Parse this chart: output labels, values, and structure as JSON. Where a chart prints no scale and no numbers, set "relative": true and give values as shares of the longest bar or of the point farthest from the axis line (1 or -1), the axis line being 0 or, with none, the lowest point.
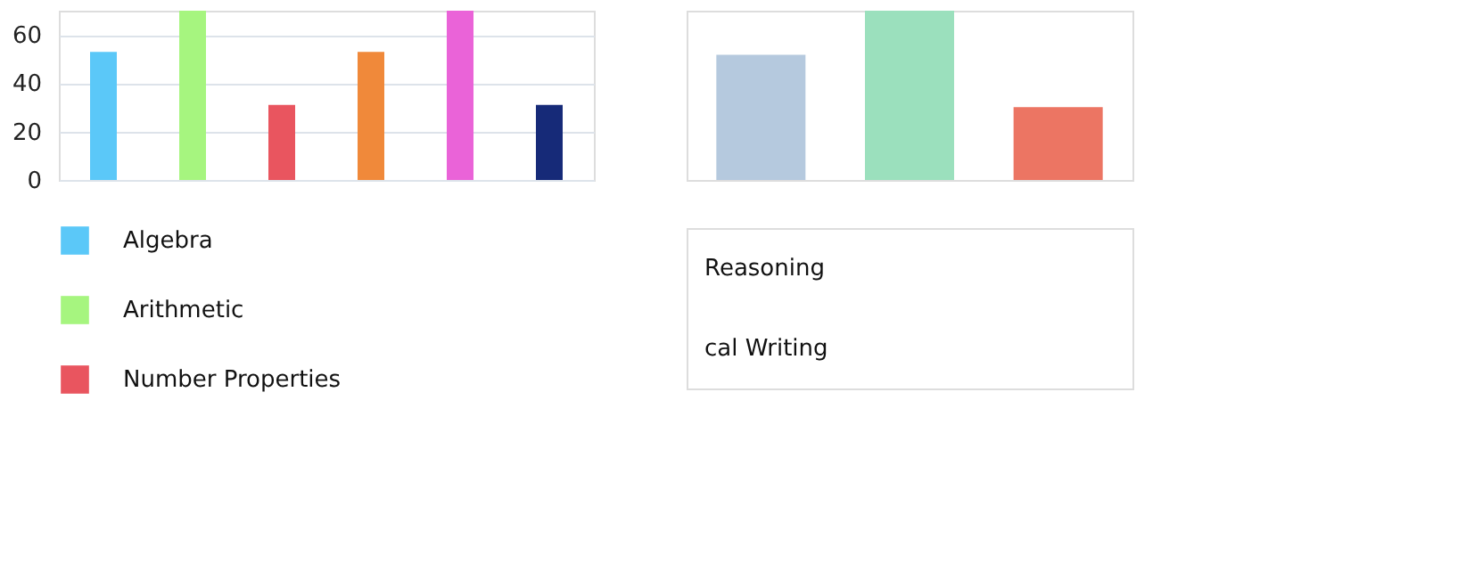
{
  "chart_data": [
    {
      "type": "bar",
      "categories": [
        null,
        null,
        null,
        null,
        null,
        null
      ],
      "series": [
        {
          "name": "Algebra",
          "color": "#5bc8f8",
          "values": [
            53,
            null,
            null,
            null,
            null,
            null
          ]
        },
        {
          "name": "Arithmetic",
          "color": "#a6f57f",
          "values": [
            null,
            70,
            null,
            null,
            null,
            null
          ]
        },
        {
          "name": "Number Properties",
          "color": "#e9555f",
          "values": [
            null,
            null,
            31,
            null,
            null,
            null
          ]
        },
        {
          "color": "#f0893a",
          "values": [
            null,
            null,
            null,
            53,
            null,
            null
          ]
        },
        {
          "color": "#ea63d8",
          "values": [
            null,
            null,
            null,
            null,
            70,
            null
          ]
        },
        {
          "color": "#162a78",
          "values": [
            null,
            null,
            null,
            null,
            null,
            31
          ]
        }
      ],
      "ylim": [
        0,
        70
      ],
      "yticks": [
        0,
        20,
        40,
        60
      ],
      "grid": "y",
      "legend": "bottom",
      "tick_labels": "y"
    },
    {
      "type": "bar",
      "categories": [
        null,
        null,
        null
      ],
      "values": [
        0.74,
        1,
        0.43
      ],
      "colors": [
        "#b5c9de",
        "#9be0bd",
        "#ec7563"
      ],
      "relative": true,
      "tick_labels": false,
      "annotations": [
        "Reasoning",
        "cal Writing"
      ]
    }
  ]
}
